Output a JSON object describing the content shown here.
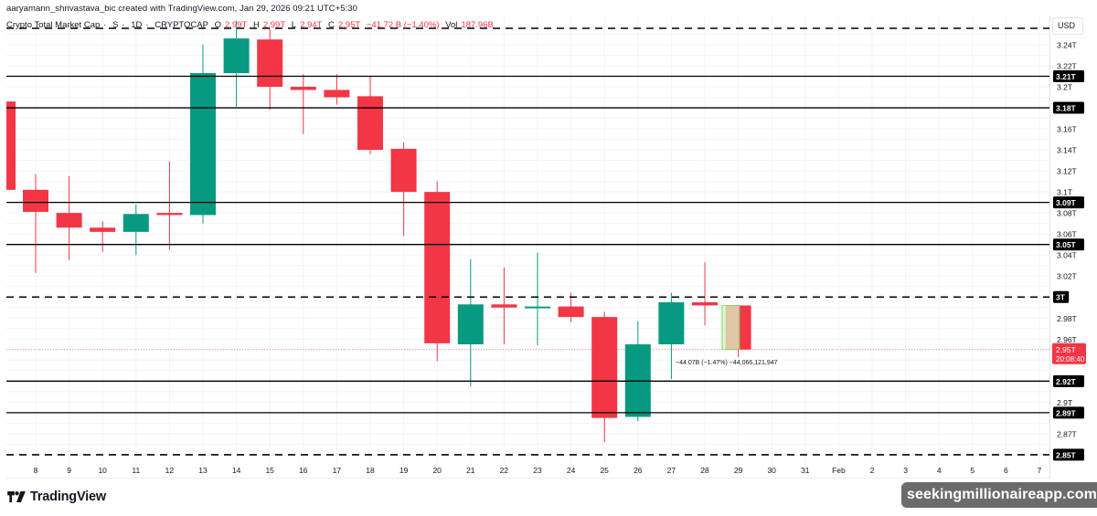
{
  "header": {
    "credit": "aaryamann_shrivastava_bic created with TradingView.com, Jan 29, 2026 09:21 UTC+5:30"
  },
  "legend": {
    "symbol_name": "Crypto Total Market Cap",
    "source": "S",
    "interval": "1D",
    "ticker": "CRYPTOCAP",
    "open_label": "O",
    "open_value": "2.99T",
    "high_label": "H",
    "high_value": "2.99T",
    "low_label": "L",
    "low_value": "2.94T",
    "close_label": "C",
    "close_value": "2.95T",
    "change": "−41.72 B (−1.40%)",
    "volume_label": "Vol",
    "volume_value": "187.96B"
  },
  "price_axis": {
    "currency_button": "USD",
    "current_price_label": "2.95T",
    "countdown": "20:08:40"
  },
  "measure_tool": {
    "label": "−44.07B (−1.47%) −44,066,121,947"
  },
  "branding": {
    "logo_text": "TradingView",
    "watermark": "seekingmillionaireapp.com"
  },
  "colors": {
    "up": "#089981",
    "down": "#f23645",
    "level_line": "#000000",
    "grid": "#f0f3fa",
    "price_line": "#f23645",
    "measure_fill": "#d9f7c6",
    "measure_border": "#66dd55"
  },
  "chart_data": {
    "type": "candlestick",
    "title": "Crypto Total Market Cap · 1D · CRYPTOCAP",
    "xlabel": "",
    "ylabel": "USD",
    "ylim": [
      2.845,
      3.255
    ],
    "grid": true,
    "price_ticks": [
      "3.24T",
      "3.22T",
      "3.2T",
      "3.16T",
      "3.14T",
      "3.12T",
      "3.1T",
      "3.08T",
      "3.06T",
      "3.04T",
      "3.02T",
      "2.98T",
      "2.96T",
      "2.9T",
      "2.87T"
    ],
    "price_tick_values": [
      3.24,
      3.22,
      3.2,
      3.16,
      3.14,
      3.12,
      3.1,
      3.08,
      3.06,
      3.04,
      3.02,
      2.98,
      2.96,
      2.9,
      2.87
    ],
    "time_ticks": [
      "8",
      "9",
      "10",
      "11",
      "12",
      "13",
      "14",
      "15",
      "16",
      "17",
      "18",
      "19",
      "20",
      "21",
      "22",
      "23",
      "24",
      "25",
      "26",
      "27",
      "28",
      "29",
      "30",
      "31",
      "Feb",
      "2",
      "3",
      "4",
      "5",
      "6",
      "7"
    ],
    "candles": [
      {
        "date": "Jan 7",
        "open": 3.186,
        "high": 3.186,
        "low": 3.102,
        "close": 3.102
      },
      {
        "date": "Jan 8",
        "open": 3.102,
        "high": 3.117,
        "low": 3.023,
        "close": 3.081
      },
      {
        "date": "Jan 9",
        "open": 3.08,
        "high": 3.115,
        "low": 3.035,
        "close": 3.066
      },
      {
        "date": "Jan 10",
        "open": 3.066,
        "high": 3.072,
        "low": 3.043,
        "close": 3.062
      },
      {
        "date": "Jan 11",
        "open": 3.062,
        "high": 3.088,
        "low": 3.04,
        "close": 3.079
      },
      {
        "date": "Jan 12",
        "open": 3.08,
        "high": 3.129,
        "low": 3.045,
        "close": 3.078
      },
      {
        "date": "Jan 13",
        "open": 3.078,
        "high": 3.24,
        "low": 3.07,
        "close": 3.213
      },
      {
        "date": "Jan 14",
        "open": 3.213,
        "high": 3.263,
        "low": 3.181,
        "close": 3.246
      },
      {
        "date": "Jan 15",
        "open": 3.245,
        "high": 3.255,
        "low": 3.178,
        "close": 3.2
      },
      {
        "date": "Jan 16",
        "open": 3.2,
        "high": 3.212,
        "low": 3.155,
        "close": 3.197
      },
      {
        "date": "Jan 17",
        "open": 3.197,
        "high": 3.212,
        "low": 3.183,
        "close": 3.19
      },
      {
        "date": "Jan 18",
        "open": 3.191,
        "high": 3.21,
        "low": 3.136,
        "close": 3.14
      },
      {
        "date": "Jan 19",
        "open": 3.141,
        "high": 3.147,
        "low": 3.058,
        "close": 3.1
      },
      {
        "date": "Jan 20",
        "open": 3.1,
        "high": 3.11,
        "low": 2.939,
        "close": 2.956
      },
      {
        "date": "Jan 21",
        "open": 2.955,
        "high": 3.036,
        "low": 2.915,
        "close": 2.993
      },
      {
        "date": "Jan 22",
        "open": 2.993,
        "high": 3.028,
        "low": 2.955,
        "close": 2.99
      },
      {
        "date": "Jan 23",
        "open": 2.99,
        "high": 3.042,
        "low": 2.954,
        "close": 2.991
      },
      {
        "date": "Jan 24",
        "open": 2.991,
        "high": 3.004,
        "low": 2.976,
        "close": 2.981
      },
      {
        "date": "Jan 25",
        "open": 2.981,
        "high": 2.986,
        "low": 2.862,
        "close": 2.885
      },
      {
        "date": "Jan 26",
        "open": 2.886,
        "high": 2.977,
        "low": 2.882,
        "close": 2.955
      },
      {
        "date": "Jan 27",
        "open": 2.955,
        "high": 3.004,
        "low": 2.922,
        "close": 2.995
      },
      {
        "date": "Jan 28",
        "open": 2.995,
        "high": 3.033,
        "low": 2.973,
        "close": 2.992
      },
      {
        "date": "Jan 29",
        "open": 2.992,
        "high": 2.992,
        "low": 2.943,
        "close": 2.95
      }
    ],
    "horizontal_levels": [
      {
        "price": 3.255,
        "style": "dashed",
        "label": ""
      },
      {
        "price": 3.21,
        "style": "solid",
        "label": "3.21T"
      },
      {
        "price": 3.18,
        "style": "solid",
        "label": "3.18T"
      },
      {
        "price": 3.09,
        "style": "solid",
        "label": "3.09T"
      },
      {
        "price": 3.05,
        "style": "solid",
        "label": "3.05T"
      },
      {
        "price": 3.0,
        "style": "dashed",
        "label": "3T"
      },
      {
        "price": 2.92,
        "style": "solid",
        "label": "2.92T"
      },
      {
        "price": 2.89,
        "style": "solid",
        "label": "2.89T"
      },
      {
        "price": 2.85,
        "style": "dashed",
        "label": "2.85T"
      }
    ],
    "current_price": 2.95,
    "annotations": [
      "−44.07B (−1.47%) −44,066,121,947"
    ]
  }
}
